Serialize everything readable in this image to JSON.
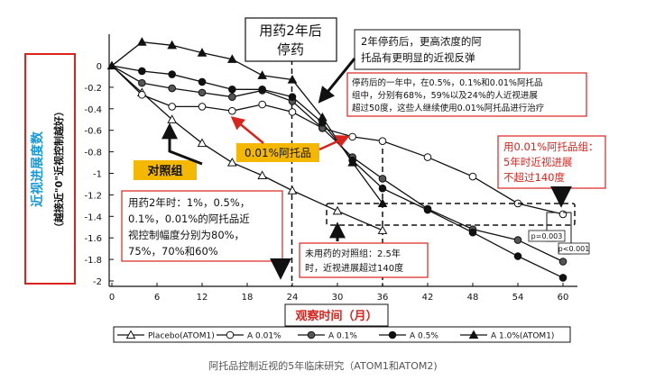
{
  "chart_data": {
    "type": "line",
    "xlabel": "观察时间（月）",
    "ylabel": "近视进展度数",
    "ylabel_sub": "（越接近\"0\"近视控制越好）",
    "xlim": [
      0,
      60
    ],
    "ylim": [
      -2.1,
      0.2
    ],
    "x_ticks": [
      "0",
      "6",
      "12",
      "18",
      "24",
      "30",
      "36",
      "42",
      "48",
      "54",
      "60"
    ],
    "y_ticks": [
      "0",
      "-0.2",
      "-0.4",
      "-0.6",
      "-0.8",
      "-1",
      "-1.2",
      "-1.4",
      "-1.6",
      "-1.8",
      "-2"
    ],
    "series": [
      {
        "name": "Placebo(ATOM1)",
        "marker": "triangle-open",
        "x": [
          0,
          4,
          8,
          12,
          16,
          20,
          24,
          30,
          36
        ],
        "y": [
          0,
          -0.25,
          -0.5,
          -0.72,
          -0.9,
          -1.02,
          -1.16,
          -1.35,
          -1.53
        ]
      },
      {
        "name": "A 0.01%",
        "marker": "circle-open",
        "x": [
          0,
          4,
          8,
          12,
          16,
          20,
          24,
          28,
          32,
          36,
          42,
          48,
          54,
          60
        ],
        "y": [
          0,
          -0.27,
          -0.38,
          -0.38,
          -0.42,
          -0.36,
          -0.43,
          -0.58,
          -0.66,
          -0.7,
          -0.85,
          -1.03,
          -1.28,
          -1.38
        ]
      },
      {
        "name": "A 0.1%",
        "marker": "circle-filled-gray",
        "x": [
          0,
          4,
          8,
          12,
          16,
          20,
          24,
          28,
          32,
          36,
          42,
          48,
          54,
          60
        ],
        "y": [
          0,
          -0.16,
          -0.21,
          -0.25,
          -0.29,
          -0.23,
          -0.33,
          -0.58,
          -0.85,
          -1.05,
          -1.33,
          -1.52,
          -1.62,
          -1.82
        ]
      },
      {
        "name": "A 0.5%",
        "marker": "circle-filled",
        "x": [
          0,
          4,
          8,
          12,
          16,
          20,
          24,
          28,
          32,
          36,
          42,
          48,
          54,
          60
        ],
        "y": [
          0,
          -0.05,
          -0.08,
          -0.15,
          -0.22,
          -0.22,
          -0.29,
          -0.53,
          -0.88,
          -1.14,
          -1.34,
          -1.55,
          -1.77,
          -1.97
        ]
      },
      {
        "name": "A 1.0%(ATOM1)",
        "marker": "triangle-filled",
        "x": [
          0,
          4,
          8,
          12,
          16,
          20,
          24,
          28,
          32,
          36
        ],
        "y": [
          0,
          0.22,
          0.19,
          0.12,
          0.06,
          -0.09,
          -0.13,
          -0.48,
          -0.9,
          -1.28
        ]
      }
    ],
    "annotations": {
      "stop_label_1": "用药2年后",
      "stop_label_2": "停药",
      "rebound_1": "2年停药后，更高浓度的阿",
      "rebound_2": "托品有更明显的近视反弹",
      "year_1": "停药后的一年中，在0.5%，0.1%和0.01%阿托品",
      "year_2": "组中，分别有68%，59%以及24%的人近视进展",
      "year_3": "超过50度，这些人继续使用0.01%阿托品进行治疗",
      "group_1": "用0.01%阿托品组：",
      "group_2": "5年时近视进展",
      "group_3": "不超过140度",
      "dose_label": "0.01%阿托品",
      "control_label": "对照组",
      "twoyear_1": "用药2年时：1%，0.5%，",
      "twoyear_2": "0.1%，0.01%的阿托品近",
      "twoyear_3": "视控制幅度分别为80%，",
      "twoyear_4": "75%，70%和60%",
      "placebo_1": "未用药的对照组：2.5年",
      "placebo_2": "时，近视进展超过140度",
      "p1": "p=0.003",
      "p2": "p<0.001"
    }
  },
  "caption": "阿托品控制近视的5年临床研究（ATOM1和ATOM2)",
  "colors": {
    "red": "#d9231d",
    "blue": "#1a9ad6",
    "orange": "#f5b800",
    "dark": "#111111"
  }
}
